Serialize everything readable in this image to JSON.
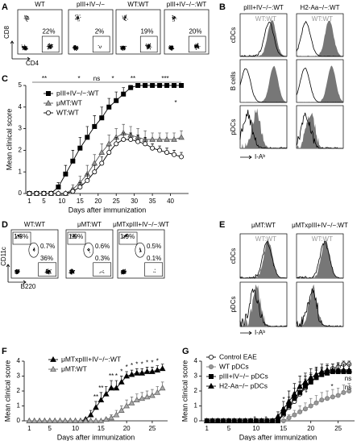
{
  "panel_A": {
    "label": "A",
    "y_axis": "CD8",
    "x_axis": "CD4",
    "plots": [
      {
        "title": "WT",
        "gate": "22%"
      },
      {
        "title": "pIII+IV−/−",
        "gate": "2%"
      },
      {
        "title": "WT:WT",
        "gate": "19%"
      },
      {
        "title": "pIII+IV−/−:WT",
        "gate": "20%"
      }
    ]
  },
  "panel_B": {
    "label": "B",
    "x_axis": "I-Aᵇ",
    "rows": [
      "cDCs",
      "B cells",
      "pDCs"
    ],
    "columns": [
      {
        "title": "pIII+IV−/−:WT",
        "overlay": "WT:WT"
      },
      {
        "title": "H2-Aa−/−:WT",
        "overlay": "WT:WT"
      }
    ]
  },
  "panel_D": {
    "label": "D",
    "y_axis": "CD11c",
    "x_axis": "B220",
    "plots": [
      {
        "title": "WT:WT",
        "gates": [
          "1.3%",
          "0.7%",
          "36%"
        ]
      },
      {
        "title": "μMT:WT",
        "gates": [
          "1.9%",
          "0.6%",
          "0.3%"
        ]
      },
      {
        "title": "μMTxpIII+IV−/−:WT",
        "gates": [
          "1.9%",
          "0.5%",
          "0.1%"
        ]
      }
    ]
  },
  "panel_E": {
    "label": "E",
    "x_axis": "I-Aᵇ",
    "rows": [
      "cDCs",
      "pDCs"
    ],
    "columns": [
      {
        "title": "μMT:WT",
        "overlay": "WT:WT"
      },
      {
        "title": "μMTxpIII+IV−/−:WT",
        "overlay": "WT:WT"
      }
    ]
  },
  "chart_data": [
    {
      "type": "line",
      "panel": "C",
      "y_label": "Mean clinical score",
      "x_label": "Days after immunization",
      "xlim": [
        0,
        45
      ],
      "xticks": [
        1,
        5,
        10,
        15,
        20,
        25,
        30,
        35,
        40
      ],
      "ylim": [
        0,
        5
      ],
      "yticks": [
        0,
        1,
        2,
        3,
        4,
        5
      ],
      "x": [
        1,
        3,
        5,
        7,
        9,
        11,
        13,
        15,
        17,
        19,
        21,
        23,
        25,
        27,
        29,
        31,
        33,
        35,
        37,
        39,
        41,
        43
      ],
      "series": [
        {
          "name": "pIII+IV−/−:WT",
          "color": "#000000",
          "fill": "#000000",
          "marker": "square",
          "values": [
            0,
            0,
            0,
            0,
            0.3,
            0.9,
            1.5,
            2.1,
            2.6,
            3.1,
            3.5,
            4.0,
            4.3,
            4.6,
            4.9,
            5,
            5,
            5,
            5,
            5,
            5,
            5
          ],
          "errors": [
            0,
            0,
            0,
            0,
            0.2,
            0.4,
            0.5,
            0.5,
            0.5,
            0.5,
            0.5,
            0.4,
            0.4,
            0.3,
            0.1,
            0,
            0,
            0,
            0,
            0,
            0,
            0
          ]
        },
        {
          "name": "μMT:WT",
          "color": "#555555",
          "fill": "#999999",
          "marker": "triangle",
          "values": [
            0,
            0,
            0,
            0,
            0,
            0,
            0.2,
            0.5,
            0.9,
            1.4,
            1.9,
            2.3,
            2.6,
            2.8,
            2.7,
            2.6,
            2.5,
            2.5,
            2.5,
            2.5,
            2.5,
            2.6
          ],
          "errors": [
            0,
            0,
            0,
            0,
            0,
            0,
            0.2,
            0.3,
            0.4,
            0.4,
            0.4,
            0.4,
            0.4,
            0.4,
            0.4,
            0.4,
            0.4,
            0.3,
            0.3,
            0.3,
            0.3,
            0.3
          ]
        },
        {
          "name": "WT:WT",
          "color": "#000000",
          "fill": "#ffffff",
          "marker": "circle",
          "values": [
            0,
            0,
            0,
            0,
            0,
            0,
            0.1,
            0.3,
            0.6,
            1.0,
            1.4,
            1.9,
            2.3,
            2.5,
            2.5,
            2.4,
            2.3,
            2.1,
            2.0,
            1.9,
            1.8,
            1.7
          ],
          "errors": [
            0,
            0,
            0,
            0,
            0,
            0,
            0.1,
            0.2,
            0.3,
            0.3,
            0.3,
            0.3,
            0.3,
            0.3,
            0.3,
            0.3,
            0.3,
            0.2,
            0.2,
            0.2,
            0.2,
            0.2
          ]
        }
      ],
      "annotations": [
        "**",
        "*",
        "ns",
        "*",
        "**",
        "***",
        "*"
      ]
    },
    {
      "type": "line",
      "panel": "F",
      "y_label": "Mean clinical score",
      "x_label": "Days after immunization",
      "xlim": [
        0,
        28
      ],
      "xticks": [
        1,
        5,
        10,
        15,
        20,
        25
      ],
      "ylim": [
        0,
        4
      ],
      "yticks": [
        0,
        1,
        2,
        3,
        4
      ],
      "x": [
        1,
        2,
        3,
        4,
        5,
        6,
        7,
        8,
        9,
        10,
        11,
        12,
        13,
        14,
        15,
        16,
        17,
        18,
        19,
        20,
        21,
        22,
        23,
        24,
        25,
        26,
        27
      ],
      "series": [
        {
          "name": "μMTxpIII+IV−/−:WT",
          "color": "#000000",
          "fill": "#000000",
          "marker": "triangle",
          "values": [
            0,
            0,
            0,
            0,
            0,
            0,
            0,
            0,
            0,
            0,
            0,
            0.1,
            0.4,
            0.9,
            1.4,
            1.8,
            2.2,
            2.2,
            2.6,
            3.0,
            3.1,
            3.2,
            3.2,
            3.3,
            3.3,
            3.4,
            3.5
          ],
          "errors": [
            0,
            0,
            0,
            0,
            0,
            0,
            0,
            0,
            0,
            0,
            0,
            0.1,
            0.3,
            0.4,
            0.5,
            0.5,
            0.5,
            0.5,
            0.4,
            0.3,
            0.3,
            0.3,
            0.3,
            0.3,
            0.3,
            0.3,
            0.3
          ]
        },
        {
          "name": "μMT:WT",
          "color": "#666666",
          "fill": "#aaaaaa",
          "marker": "triangle",
          "values": [
            0,
            0,
            0,
            0,
            0,
            0,
            0,
            0,
            0,
            0,
            0,
            0,
            0,
            0,
            0,
            0.1,
            0.2,
            0.4,
            0.7,
            1.0,
            1.2,
            1.4,
            1.5,
            1.6,
            1.7,
            1.9,
            2.2
          ],
          "errors": [
            0,
            0,
            0,
            0,
            0,
            0,
            0,
            0,
            0,
            0,
            0,
            0,
            0,
            0,
            0,
            0.1,
            0.2,
            0.3,
            0.3,
            0.4,
            0.4,
            0.4,
            0.4,
            0.4,
            0.4,
            0.4,
            0.4
          ]
        }
      ],
      "annotations": [
        "**",
        "**",
        "**",
        "*",
        "*",
        "*",
        "*",
        "*",
        "*",
        "*",
        "*",
        "*"
      ]
    },
    {
      "type": "line",
      "panel": "G",
      "y_label": "Mean clinical score",
      "x_label": "Days after immunization",
      "xlim": [
        0,
        28
      ],
      "xticks": [
        1,
        5,
        10,
        15,
        20,
        25
      ],
      "ylim": [
        0,
        4
      ],
      "yticks": [
        0,
        1,
        2,
        3,
        4
      ],
      "x": [
        1,
        2,
        3,
        4,
        5,
        6,
        7,
        8,
        9,
        10,
        11,
        12,
        13,
        14,
        15,
        16,
        17,
        18,
        19,
        20,
        21,
        22,
        23,
        24,
        25,
        26,
        27
      ],
      "series": [
        {
          "name": "Control EAE",
          "color": "#000000",
          "fill": "#ffffff",
          "marker": "circle",
          "values": [
            0,
            0,
            0,
            0,
            0,
            0,
            0,
            0,
            0,
            0,
            0,
            0,
            0,
            0,
            0.4,
            0.9,
            1.3,
            1.8,
            2.2,
            2.6,
            2.9,
            3.1,
            3.3,
            3.5,
            3.6,
            3.8,
            3.8
          ],
          "errors": [
            0,
            0,
            0,
            0,
            0,
            0,
            0,
            0,
            0,
            0,
            0,
            0,
            0,
            0,
            0.3,
            0.5,
            0.6,
            0.6,
            0.6,
            0.5,
            0.5,
            0.4,
            0.4,
            0.3,
            0.3,
            0.2,
            0.2
          ]
        },
        {
          "name": "WT pDCs",
          "color": "#777777",
          "fill": "#999999",
          "marker": "circle",
          "values": [
            0,
            0,
            0,
            0,
            0,
            0,
            0,
            0,
            0,
            0,
            0,
            0,
            0,
            0,
            0,
            0.2,
            0.4,
            0.6,
            0.8,
            1.0,
            1.2,
            1.4,
            1.5,
            1.6,
            1.7,
            1.9,
            2.0
          ],
          "errors": [
            0,
            0,
            0,
            0,
            0,
            0,
            0,
            0,
            0,
            0,
            0,
            0,
            0,
            0,
            0,
            0.2,
            0.3,
            0.4,
            0.4,
            0.5,
            0.5,
            0.5,
            0.5,
            0.5,
            0.5,
            0.5,
            0.5
          ]
        },
        {
          "name": "pIII+IV−/− pDCs",
          "color": "#000000",
          "fill": "#000000",
          "marker": "square",
          "values": [
            0,
            0,
            0,
            0,
            0,
            0,
            0,
            0,
            0,
            0,
            0,
            0,
            0,
            0,
            0.5,
            1.0,
            1.5,
            1.9,
            2.3,
            2.6,
            2.9,
            3.1,
            3.2,
            3.3,
            3.3,
            3.3,
            3.3
          ],
          "errors": [
            0,
            0,
            0,
            0,
            0,
            0,
            0,
            0,
            0,
            0,
            0,
            0,
            0,
            0,
            0.4,
            0.6,
            0.7,
            0.7,
            0.7,
            0.6,
            0.6,
            0.5,
            0.5,
            0.5,
            0.5,
            0.5,
            0.5
          ]
        },
        {
          "name": "H2-Aa−/− pDCs",
          "color": "#000000",
          "fill": "#000000",
          "marker": "triangle",
          "values": [
            0,
            0,
            0,
            0,
            0,
            0,
            0,
            0,
            0,
            0,
            0,
            0,
            0,
            0.3,
            0.8,
            1.3,
            1.8,
            2.3,
            2.6,
            2.9,
            3.1,
            3.3,
            3.4,
            3.4,
            3.4,
            3.4,
            3.4
          ],
          "errors": [
            0,
            0,
            0,
            0,
            0,
            0,
            0,
            0,
            0,
            0,
            0,
            0,
            0,
            0.3,
            0.5,
            0.7,
            0.7,
            0.7,
            0.6,
            0.6,
            0.5,
            0.5,
            0.4,
            0.4,
            0.4,
            0.4,
            0.4
          ]
        }
      ],
      "annotations": [
        "ns",
        "ns",
        "*",
        "*",
        "*",
        "*",
        "*",
        "*"
      ]
    }
  ]
}
